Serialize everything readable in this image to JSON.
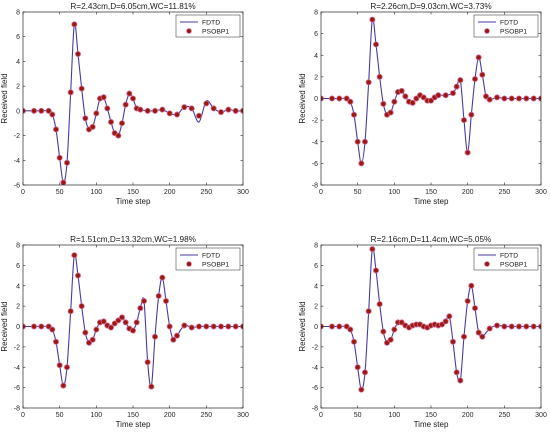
{
  "chart_data": [
    {
      "type": "line",
      "title": "R=2.43cm,D=6.05cm,WC=11.81%",
      "xlabel": "Time step",
      "ylabel": "Received field",
      "xlim": [
        0,
        300
      ],
      "ylim": [
        -6,
        8
      ],
      "xticks": [
        0,
        50,
        100,
        150,
        200,
        250,
        300
      ],
      "yticks": [
        -6,
        -4,
        -2,
        0,
        2,
        4,
        6,
        8
      ],
      "legend_position": "top-right",
      "series": [
        {
          "name": "FDTD",
          "color": "#4a3aa0",
          "marker": "line",
          "x": [
            0,
            15,
            25,
            35,
            40,
            45,
            50,
            55,
            60,
            65,
            70,
            75,
            80,
            85,
            90,
            95,
            100,
            105,
            110,
            115,
            120,
            125,
            130,
            135,
            140,
            145,
            150,
            155,
            160,
            170,
            180,
            190,
            200,
            210,
            220,
            230,
            240,
            250,
            260,
            270,
            280,
            290,
            300
          ],
          "y": [
            0,
            0,
            0,
            0,
            -0.3,
            -1.5,
            -3.8,
            -5.8,
            -4.2,
            1.5,
            7.0,
            4.6,
            1.8,
            -0.6,
            -1.5,
            -1.3,
            -0.2,
            1.0,
            1.1,
            0.2,
            -0.9,
            -1.8,
            -2.0,
            -1.0,
            0.5,
            1.4,
            1.0,
            0.2,
            0.1,
            0.0,
            0.0,
            0.1,
            -0.2,
            -0.3,
            0.3,
            0.2,
            -0.9,
            0.8,
            0.2,
            -0.1,
            0.1,
            0.0,
            0.0
          ]
        },
        {
          "name": "PSOBP1",
          "color": "#9a1a10",
          "marker": "dot",
          "x": [
            0,
            15,
            25,
            35,
            40,
            45,
            50,
            55,
            60,
            65,
            70,
            75,
            80,
            85,
            90,
            95,
            100,
            105,
            110,
            115,
            120,
            125,
            130,
            135,
            140,
            145,
            150,
            155,
            160,
            170,
            180,
            190,
            200,
            210,
            220,
            230,
            240,
            250,
            260,
            270,
            280,
            290,
            300
          ],
          "y": [
            0,
            0,
            0,
            0,
            -0.3,
            -1.5,
            -3.8,
            -5.8,
            -4.2,
            1.5,
            7.0,
            4.6,
            1.8,
            -0.6,
            -1.5,
            -1.3,
            -0.2,
            1.0,
            1.1,
            0.2,
            -0.9,
            -1.8,
            -2.0,
            -1.0,
            0.5,
            1.4,
            1.0,
            0.2,
            0.1,
            0.0,
            0.0,
            0.1,
            -0.2,
            -0.3,
            0.3,
            0.2,
            -0.4,
            0.6,
            0.2,
            -0.1,
            0.1,
            0.0,
            0.0
          ]
        }
      ]
    },
    {
      "type": "line",
      "title": "R=2.26cm,D=9.03cm,WC=3.73%",
      "xlabel": "Time step",
      "ylabel": "Received field",
      "xlim": [
        0,
        300
      ],
      "ylim": [
        -8,
        8
      ],
      "xticks": [
        0,
        50,
        100,
        150,
        200,
        250,
        300
      ],
      "yticks": [
        -8,
        -6,
        -4,
        -2,
        0,
        2,
        4,
        6,
        8
      ],
      "legend_position": "top-right",
      "series": [
        {
          "name": "FDTD",
          "color": "#4a3aa0",
          "marker": "line",
          "x": [
            0,
            15,
            25,
            35,
            40,
            45,
            50,
            55,
            60,
            65,
            70,
            75,
            80,
            85,
            90,
            95,
            100,
            105,
            110,
            115,
            120,
            125,
            130,
            135,
            140,
            145,
            150,
            155,
            160,
            170,
            180,
            185,
            190,
            195,
            200,
            205,
            210,
            215,
            220,
            225,
            230,
            240,
            250,
            260,
            270,
            280,
            290,
            300
          ],
          "y": [
            0,
            0,
            0,
            0,
            -0.3,
            -1.5,
            -4.0,
            -6.0,
            -4.0,
            1.5,
            7.3,
            5.0,
            2.0,
            -0.5,
            -1.5,
            -1.3,
            -0.3,
            0.6,
            0.7,
            0.2,
            -0.3,
            -0.4,
            0.0,
            0.3,
            0.1,
            -0.2,
            -0.2,
            0.1,
            0.3,
            0.3,
            0.5,
            1.1,
            1.7,
            -2.0,
            -5.0,
            -1.5,
            1.8,
            3.8,
            2.2,
            0.2,
            -0.1,
            0.1,
            0.0,
            0.0,
            0.0,
            0.0,
            0.0,
            0.0
          ]
        },
        {
          "name": "PSOBP1",
          "color": "#9a1a10",
          "marker": "dot",
          "x": [
            0,
            15,
            25,
            35,
            40,
            45,
            50,
            55,
            60,
            65,
            70,
            75,
            80,
            85,
            90,
            95,
            100,
            105,
            110,
            115,
            120,
            125,
            130,
            135,
            140,
            145,
            150,
            155,
            160,
            170,
            180,
            185,
            190,
            195,
            200,
            205,
            210,
            215,
            220,
            225,
            230,
            240,
            250,
            260,
            270,
            280,
            290,
            300
          ],
          "y": [
            0,
            0,
            0,
            0,
            -0.3,
            -1.5,
            -4.0,
            -6.0,
            -4.0,
            1.5,
            7.3,
            5.0,
            2.0,
            -0.5,
            -1.5,
            -1.3,
            -0.3,
            0.6,
            0.7,
            0.2,
            -0.3,
            -0.4,
            0.0,
            0.3,
            0.1,
            -0.2,
            -0.2,
            0.1,
            0.3,
            0.3,
            0.5,
            1.1,
            1.7,
            -2.0,
            -5.0,
            -1.5,
            1.8,
            3.8,
            2.2,
            0.2,
            -0.1,
            0.1,
            0.0,
            0.0,
            0.0,
            0.0,
            0.0,
            0.0
          ]
        }
      ]
    },
    {
      "type": "line",
      "title": "R=1.51cm,D=13.32cm,WC=1.98%",
      "xlabel": "Time step",
      "ylabel": "Received field",
      "xlim": [
        0,
        300
      ],
      "ylim": [
        -8,
        8
      ],
      "xticks": [
        0,
        50,
        100,
        150,
        200,
        250,
        300
      ],
      "yticks": [
        -8,
        -6,
        -4,
        -2,
        0,
        2,
        4,
        6,
        8
      ],
      "legend_position": "top-right",
      "series": [
        {
          "name": "FDTD",
          "color": "#4a3aa0",
          "marker": "line",
          "x": [
            0,
            15,
            25,
            35,
            40,
            45,
            50,
            55,
            60,
            65,
            70,
            75,
            80,
            85,
            90,
            95,
            100,
            105,
            110,
            115,
            120,
            125,
            130,
            135,
            140,
            145,
            150,
            155,
            160,
            165,
            170,
            175,
            180,
            185,
            190,
            195,
            200,
            205,
            210,
            220,
            230,
            240,
            250,
            260,
            270,
            280,
            290,
            300
          ],
          "y": [
            0,
            0,
            0,
            0,
            -0.3,
            -1.5,
            -3.8,
            -5.8,
            -4.0,
            1.5,
            7.0,
            5.0,
            2.0,
            -0.6,
            -1.6,
            -1.3,
            -0.3,
            0.4,
            0.5,
            0.1,
            -0.1,
            0.3,
            0.6,
            0.9,
            0.4,
            -0.2,
            -0.4,
            0.4,
            1.8,
            2.5,
            -3.5,
            -5.9,
            -1.0,
            3.0,
            4.8,
            2.5,
            0.0,
            -1.3,
            -0.9,
            0.1,
            -0.1,
            0.0,
            0.0,
            0.0,
            0.0,
            0.0,
            0.0,
            0.0
          ]
        },
        {
          "name": "PSOBP1",
          "color": "#9a1a10",
          "marker": "dot",
          "x": [
            0,
            15,
            25,
            35,
            40,
            45,
            50,
            55,
            60,
            65,
            70,
            75,
            80,
            85,
            90,
            95,
            100,
            105,
            110,
            115,
            120,
            125,
            130,
            135,
            140,
            145,
            150,
            155,
            160,
            165,
            170,
            175,
            180,
            185,
            190,
            195,
            200,
            205,
            210,
            220,
            230,
            240,
            250,
            260,
            270,
            280,
            290,
            300
          ],
          "y": [
            0,
            0,
            0,
            0,
            -0.3,
            -1.5,
            -3.8,
            -5.8,
            -4.0,
            1.5,
            7.0,
            5.0,
            2.0,
            -0.6,
            -1.6,
            -1.3,
            -0.3,
            0.4,
            0.5,
            0.1,
            -0.1,
            0.3,
            0.6,
            0.9,
            0.4,
            -0.2,
            -0.4,
            0.4,
            1.8,
            2.5,
            -3.5,
            -5.9,
            -1.0,
            3.0,
            4.8,
            2.5,
            0.0,
            -1.3,
            -0.9,
            0.1,
            -0.1,
            0.0,
            0.0,
            0.0,
            0.0,
            0.0,
            0.0,
            0.0
          ]
        }
      ]
    },
    {
      "type": "line",
      "title": "R=2.16cm,D=11.4cm,WC=5.05%",
      "xlabel": "Time step",
      "ylabel": "Received field",
      "xlim": [
        0,
        300
      ],
      "ylim": [
        -8,
        8
      ],
      "xticks": [
        0,
        50,
        100,
        150,
        200,
        250,
        300
      ],
      "yticks": [
        -8,
        -6,
        -4,
        -2,
        0,
        2,
        4,
        6,
        8
      ],
      "legend_position": "top-right",
      "series": [
        {
          "name": "FDTD",
          "color": "#4a3aa0",
          "marker": "line",
          "x": [
            0,
            15,
            25,
            35,
            40,
            45,
            50,
            55,
            60,
            65,
            70,
            75,
            80,
            85,
            90,
            95,
            100,
            105,
            110,
            115,
            120,
            125,
            130,
            135,
            140,
            145,
            150,
            155,
            160,
            165,
            170,
            175,
            180,
            185,
            190,
            195,
            200,
            205,
            210,
            215,
            220,
            230,
            240,
            250,
            260,
            270,
            280,
            290,
            300
          ],
          "y": [
            0,
            0,
            0,
            0,
            -0.3,
            -1.5,
            -4.0,
            -6.2,
            -4.5,
            1.5,
            7.6,
            5.5,
            2.2,
            -0.5,
            -1.6,
            -1.3,
            -0.3,
            0.4,
            0.4,
            0.1,
            -0.1,
            0.1,
            0.2,
            0.2,
            0.0,
            -0.1,
            0.1,
            0.2,
            0.1,
            0.2,
            0.5,
            1.0,
            -1.5,
            -4.5,
            -5.3,
            -1.0,
            2.5,
            4.0,
            1.8,
            -0.6,
            -1.0,
            -0.2,
            0.1,
            0.0,
            0.0,
            0.0,
            0.0,
            0.0,
            0.0
          ]
        },
        {
          "name": "PSOBP1",
          "color": "#9a1a10",
          "marker": "dot",
          "x": [
            0,
            15,
            25,
            35,
            40,
            45,
            50,
            55,
            60,
            65,
            70,
            75,
            80,
            85,
            90,
            95,
            100,
            105,
            110,
            115,
            120,
            125,
            130,
            135,
            140,
            145,
            150,
            155,
            160,
            165,
            170,
            175,
            180,
            185,
            190,
            195,
            200,
            205,
            210,
            215,
            220,
            230,
            240,
            250,
            260,
            270,
            280,
            290,
            300
          ],
          "y": [
            0,
            0,
            0,
            0,
            -0.3,
            -1.5,
            -4.0,
            -6.2,
            -4.5,
            1.5,
            7.6,
            5.5,
            2.2,
            -0.5,
            -1.6,
            -1.3,
            -0.3,
            0.4,
            0.4,
            0.1,
            -0.1,
            0.1,
            0.2,
            0.2,
            0.0,
            -0.1,
            0.1,
            0.2,
            0.1,
            0.2,
            0.5,
            1.0,
            -1.5,
            -4.5,
            -5.3,
            -1.0,
            2.5,
            4.0,
            1.8,
            -0.6,
            -1.0,
            -0.2,
            0.1,
            0.0,
            0.0,
            0.0,
            0.0,
            0.0,
            0.0
          ]
        }
      ]
    }
  ]
}
